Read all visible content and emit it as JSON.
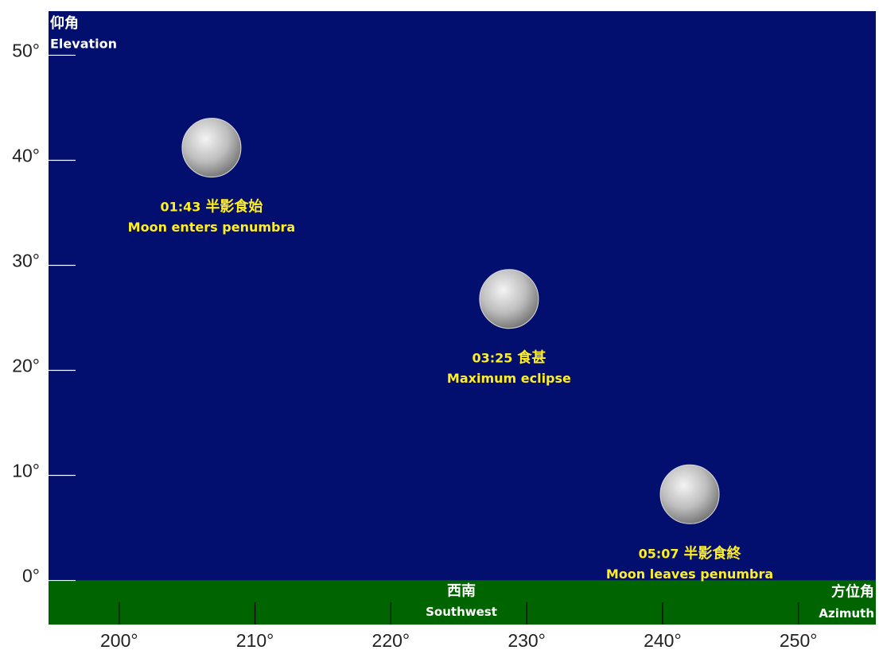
{
  "chart_data": {
    "type": "scatter",
    "x": [
      206.8,
      228.7,
      242.0
    ],
    "values": [
      41.2,
      26.8,
      8.2
    ],
    "annotations": [
      {
        "time": "01:43",
        "zh": "半影食始",
        "en": "Moon enters penumbra"
      },
      {
        "time": "03:25",
        "zh": "食甚",
        "en": "Maximum eclipse"
      },
      {
        "time": "05:07",
        "zh": "半影食終",
        "en": "Moon leaves penumbra"
      }
    ],
    "xlim": [
      194.8,
      255.7
    ],
    "ylim": [
      -4.2,
      54.2
    ],
    "xticks": [
      {
        "value": 200,
        "label": "200°"
      },
      {
        "value": 210,
        "label": "210°"
      },
      {
        "value": 220,
        "label": "220°"
      },
      {
        "value": 230,
        "label": "230°"
      },
      {
        "value": 240,
        "label": "240°"
      },
      {
        "value": 250,
        "label": "250°"
      }
    ],
    "yticks": [
      {
        "value": 0,
        "label": "0°"
      },
      {
        "value": 10,
        "label": "10°"
      },
      {
        "value": 20,
        "label": "20°"
      },
      {
        "value": 30,
        "label": "30°"
      },
      {
        "value": 40,
        "label": "40°"
      },
      {
        "value": 50,
        "label": "50°"
      }
    ],
    "y_label": {
      "zh": "仰角",
      "en": "Elevation"
    },
    "x_label": {
      "zh": "方位角",
      "en": "Azimuth"
    },
    "ground": {
      "zh": "西南",
      "en": "Southwest",
      "color": "#006400"
    },
    "sky_color": "#020f6e",
    "label_color": "#ffee22"
  }
}
